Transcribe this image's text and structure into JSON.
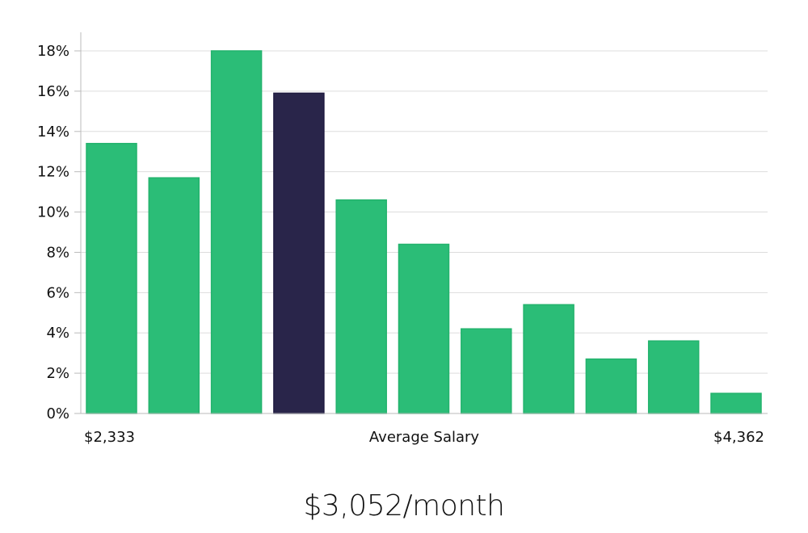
{
  "chart_data": {
    "type": "bar",
    "x_start_label": "$2,333",
    "x_center_label": "Average Salary",
    "x_end_label": "$4,362",
    "values": [
      13.4,
      11.7,
      18.0,
      15.9,
      10.6,
      8.4,
      4.2,
      5.4,
      2.7,
      3.6,
      1.0
    ],
    "highlight_index": 3,
    "y_ticks": [
      "0%",
      "2%",
      "4%",
      "6%",
      "8%",
      "10%",
      "12%",
      "14%",
      "16%",
      "18%"
    ],
    "ylim": [
      0,
      18
    ],
    "grid": true,
    "colors": {
      "bar": "#2bbd77",
      "highlight": "#29254a",
      "grid": "#dddddd",
      "axis": "#bbbbbb"
    }
  },
  "summary": {
    "value": "$3,052/month"
  }
}
